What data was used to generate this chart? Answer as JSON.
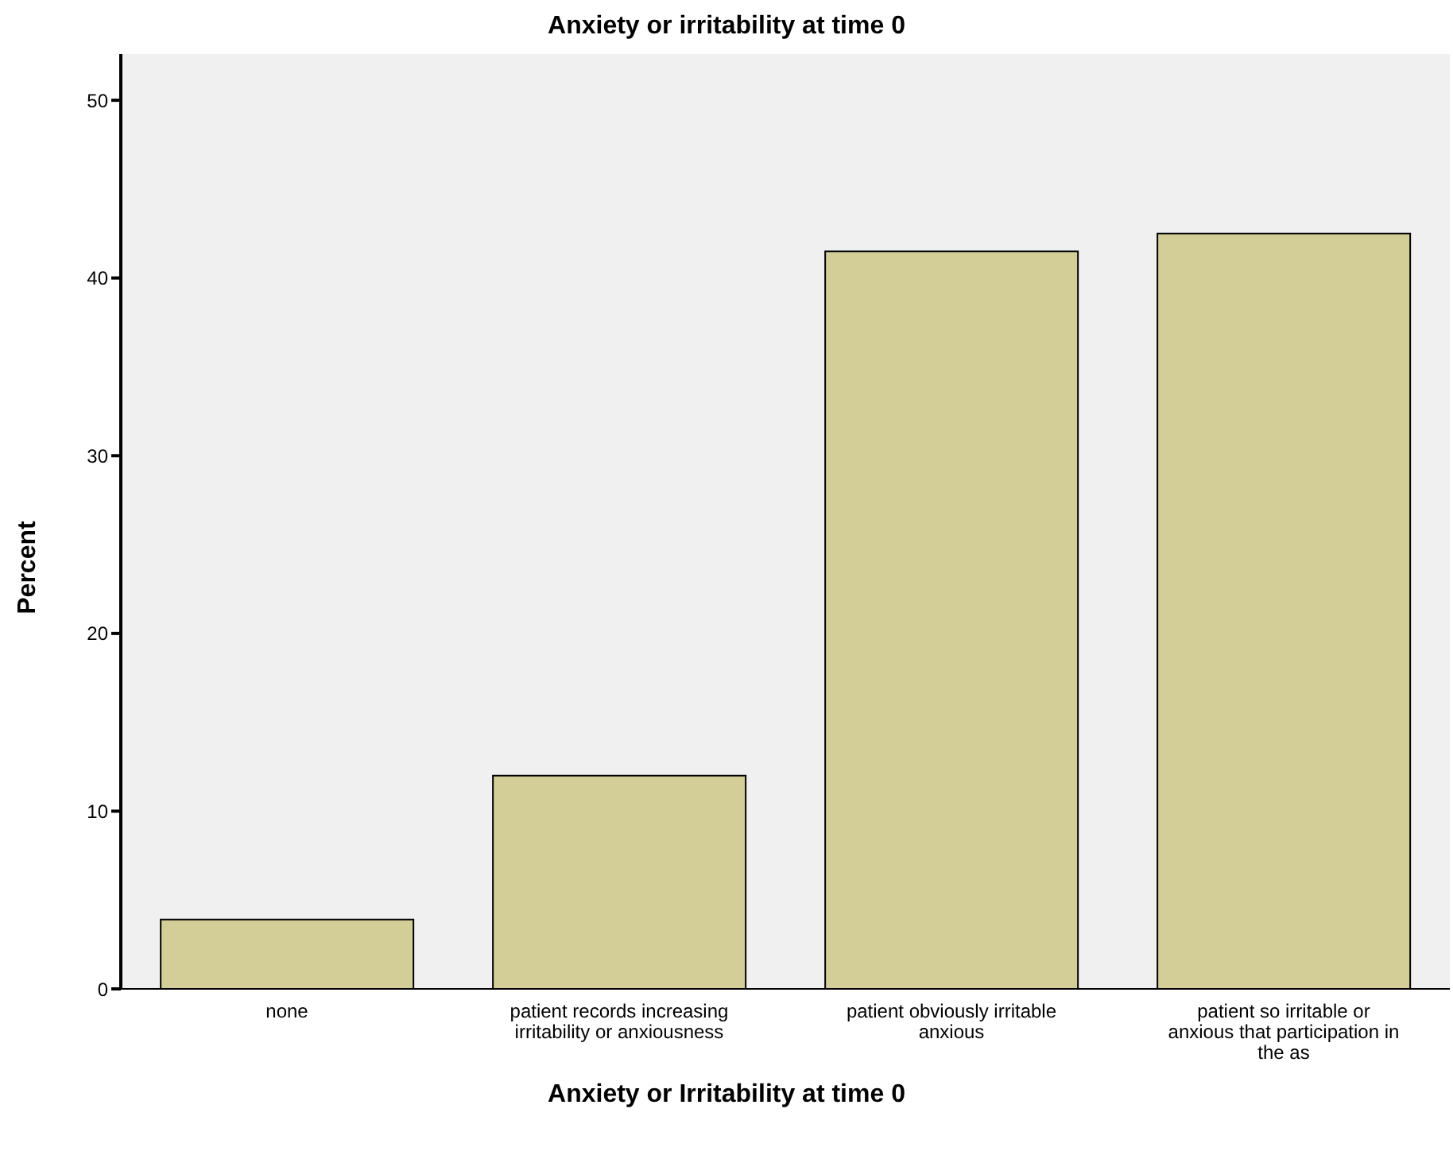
{
  "chart_data": {
    "type": "bar",
    "title": "Anxiety or irritability at time 0",
    "xlabel": "Anxiety or Irritability at time 0",
    "ylabel": "Percent",
    "categories": [
      "none",
      "patient records increasing irritability or anxiousness",
      "patient obviously irritable anxious",
      "patient so irritable or anxious that participation in the as"
    ],
    "values": [
      3.9,
      12.0,
      41.5,
      42.5
    ],
    "color": "#d3ce97",
    "ylim": [
      0,
      52.6
    ],
    "yticks": [
      0,
      10,
      20,
      30,
      40,
      50
    ],
    "grid": false,
    "legend": false
  }
}
